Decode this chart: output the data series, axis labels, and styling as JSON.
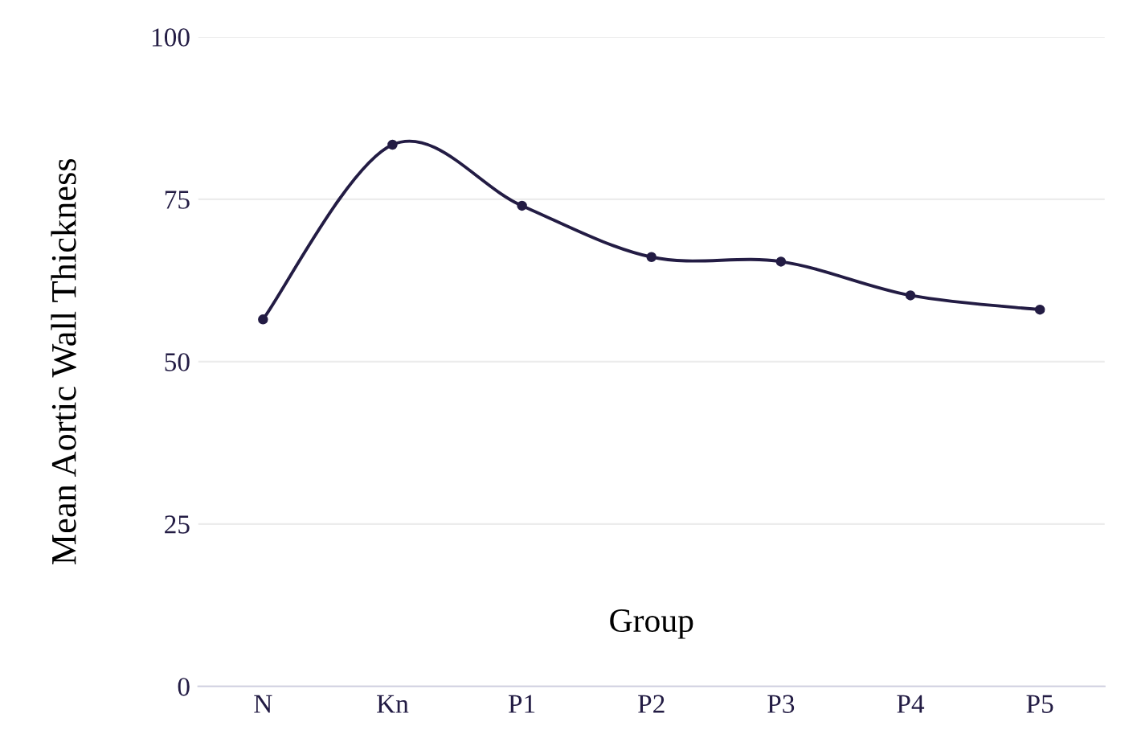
{
  "chart_data": {
    "type": "line",
    "xlabel": "Group",
    "ylabel": "Mean Aortic Wall Thickness",
    "categories": [
      "N",
      "Kn",
      "P1",
      "P2",
      "P3",
      "P4",
      "P5"
    ],
    "series": [
      {
        "color": "#231c44",
        "values": [
          56.5,
          83.4,
          74.0,
          66.1,
          65.4,
          60.2,
          58.0
        ]
      }
    ],
    "ylim": [
      0,
      100
    ],
    "yticks": [
      0,
      25,
      50,
      75,
      100
    ],
    "grid": "y",
    "marker": "circle",
    "line_style": "solid"
  }
}
